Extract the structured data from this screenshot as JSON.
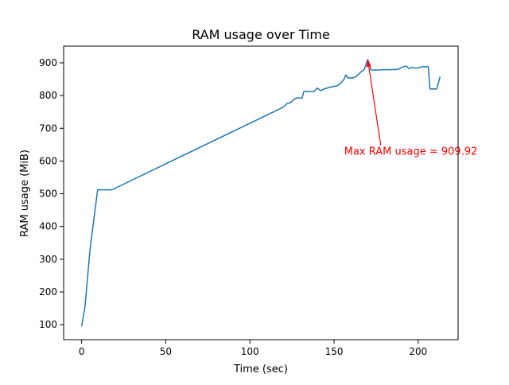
{
  "chart_data": {
    "type": "line",
    "title": "RAM usage over Time",
    "xlabel": "Time (sec)",
    "ylabel": "RAM usage (MiB)",
    "xlim": [
      -10.7,
      223.7
    ],
    "ylim": [
      54.3,
      950.9
    ],
    "xticks": [
      0,
      50,
      100,
      150,
      200
    ],
    "yticks": [
      100,
      200,
      300,
      400,
      500,
      600,
      700,
      800,
      900
    ],
    "grid": false,
    "series": [
      {
        "color": "#1f77b4",
        "x": [
          0,
          2,
          5,
          9.5,
          18,
          118,
          120,
          122,
          124,
          126,
          128,
          131,
          132,
          134,
          136,
          138,
          140,
          142,
          144,
          146,
          148,
          150,
          152,
          154,
          156,
          157,
          158,
          160,
          162,
          164,
          166,
          168,
          170,
          172,
          176,
          180,
          184,
          188,
          191,
          193,
          194.5,
          196,
          198,
          200,
          202,
          204,
          206,
          207,
          209,
          211,
          213
        ],
        "y": [
          95,
          155,
          330,
          512,
          512,
          760,
          765,
          775,
          778,
          788,
          793,
          792,
          812,
          813,
          812,
          812,
          823,
          815,
          820,
          823,
          826,
          828,
          830,
          838,
          850,
          863,
          855,
          853,
          855,
          862,
          872,
          880,
          909.92,
          878,
          878,
          879,
          879,
          880,
          888,
          890,
          882,
          886,
          884,
          884,
          888,
          888,
          888,
          820,
          820,
          820,
          858
        ]
      }
    ],
    "annotation": {
      "text": "Max RAM usage = 909.92",
      "color": "#ff0000",
      "point": [
        170,
        909.92
      ],
      "text_position": [
        156,
        619
      ]
    }
  }
}
